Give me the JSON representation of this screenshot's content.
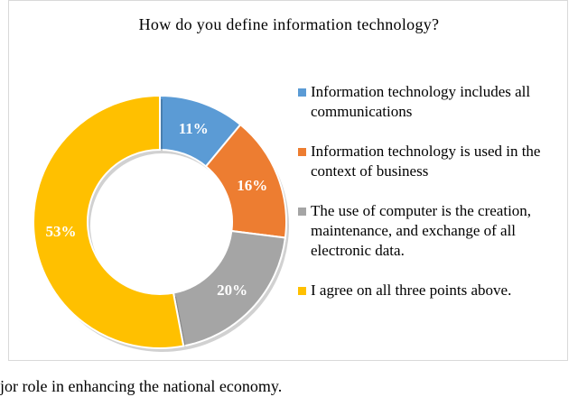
{
  "chart_data": {
    "type": "pie",
    "subtype": "donut",
    "title": "How do you define information technology?",
    "categories": [
      "Information technology includes all communications",
      "Information technology is used in the context of business",
      "The use of computer is the creation, maintenance, and exchange of all electronic data.",
      "I agree on all three points above."
    ],
    "values": [
      11,
      16,
      20,
      53
    ],
    "data_labels": [
      "11%",
      "16%",
      "20%",
      "53%"
    ],
    "colors": [
      "#5b9bd5",
      "#ed7d31",
      "#a5a5a5",
      "#ffc000"
    ],
    "legend_position": "right"
  },
  "legend": [
    {
      "text": "Information technology includes all communications"
    },
    {
      "text": "Information technology is used in the context of business"
    },
    {
      "text": "The use of computer is the creation, maintenance, and exchange of all electronic data."
    },
    {
      "text": "I agree on all three points above."
    }
  ],
  "caption": "jor role in enhancing the national economy."
}
